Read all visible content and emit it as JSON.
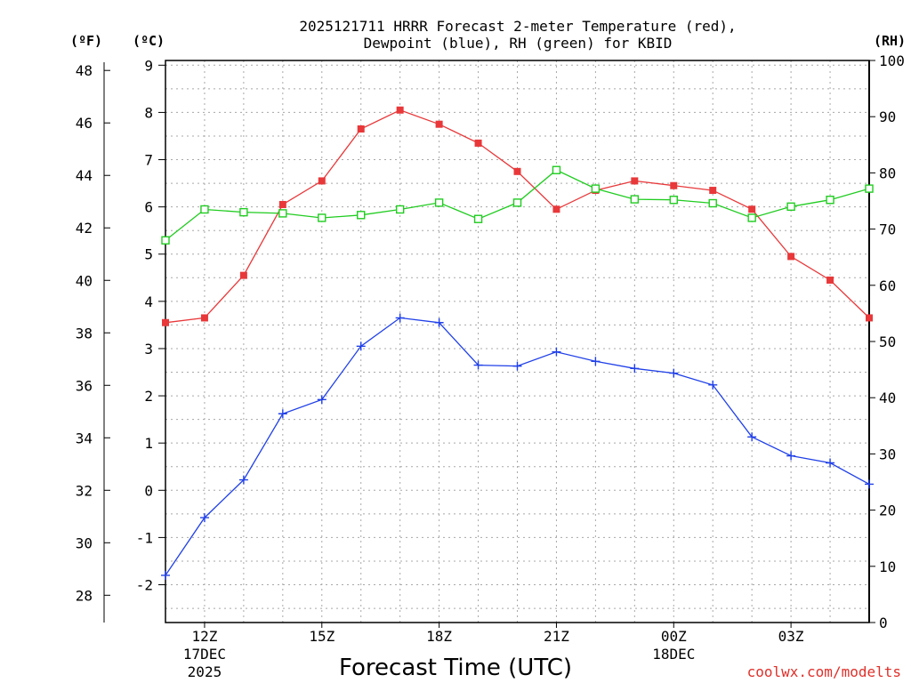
{
  "chart_data": {
    "type": "line",
    "title_line1": "2025121711 HRRR Forecast 2-meter Temperature (red),",
    "title_line2": "Dewpoint (blue), RH (green) for KBID",
    "xlabel": "Forecast Time (UTC)",
    "credit": "coolwx.com/modelts",
    "units": {
      "f": "(ºF)",
      "c": "(ºC)",
      "rh": "(RH)"
    },
    "hours": [
      11,
      12,
      13,
      14,
      15,
      16,
      17,
      18,
      19,
      20,
      21,
      22,
      23,
      24,
      25,
      26,
      27,
      28,
      29
    ],
    "x_ticks": [
      {
        "hour": 12,
        "label": "12Z",
        "sub1": "17DEC",
        "sub2": "2025"
      },
      {
        "hour": 15,
        "label": "15Z",
        "sub1": "",
        "sub2": ""
      },
      {
        "hour": 18,
        "label": "18Z",
        "sub1": "",
        "sub2": ""
      },
      {
        "hour": 21,
        "label": "21Z",
        "sub1": "",
        "sub2": ""
      },
      {
        "hour": 24,
        "label": "00Z",
        "sub1": "18DEC",
        "sub2": ""
      },
      {
        "hour": 27,
        "label": "03Z",
        "sub1": "",
        "sub2": ""
      }
    ],
    "y_celsius": {
      "min": -2.8,
      "max": 9.1,
      "ticks": [
        -2,
        -1,
        0,
        1,
        2,
        3,
        4,
        5,
        6,
        7,
        8,
        9
      ]
    },
    "y_fahrenheit": {
      "ticks": [
        28,
        30,
        32,
        34,
        36,
        38,
        40,
        42,
        44,
        46,
        48
      ]
    },
    "y_rh": {
      "min": 0,
      "max": 100,
      "ticks": [
        0,
        10,
        20,
        30,
        40,
        50,
        60,
        70,
        80,
        90,
        100
      ]
    },
    "series": [
      {
        "name": "Temperature",
        "axis": "celsius",
        "color": "#e8383a",
        "marker": "filled-square",
        "values": [
          3.55,
          3.65,
          4.55,
          6.05,
          6.55,
          7.65,
          8.05,
          7.75,
          7.35,
          6.75,
          5.95,
          6.35,
          6.55,
          6.45,
          6.35,
          5.95,
          4.95,
          4.45,
          3.65
        ]
      },
      {
        "name": "Dewpoint",
        "axis": "celsius",
        "color": "#2040e8",
        "marker": "plus",
        "values": [
          -1.8,
          -0.58,
          0.22,
          1.62,
          1.92,
          3.05,
          3.65,
          3.55,
          2.65,
          2.63,
          2.93,
          2.73,
          2.58,
          2.48,
          2.23,
          1.13,
          0.73,
          0.58,
          0.13
        ]
      },
      {
        "name": "RH",
        "axis": "rh",
        "color": "#20cc20",
        "marker": "open-square",
        "values": [
          68,
          73.5,
          73,
          72.8,
          72,
          72.5,
          73.5,
          74.7,
          71.8,
          74.7,
          80.5,
          77.2,
          75.3,
          75.2,
          74.6,
          72,
          74,
          75.2,
          77.2
        ]
      }
    ]
  }
}
